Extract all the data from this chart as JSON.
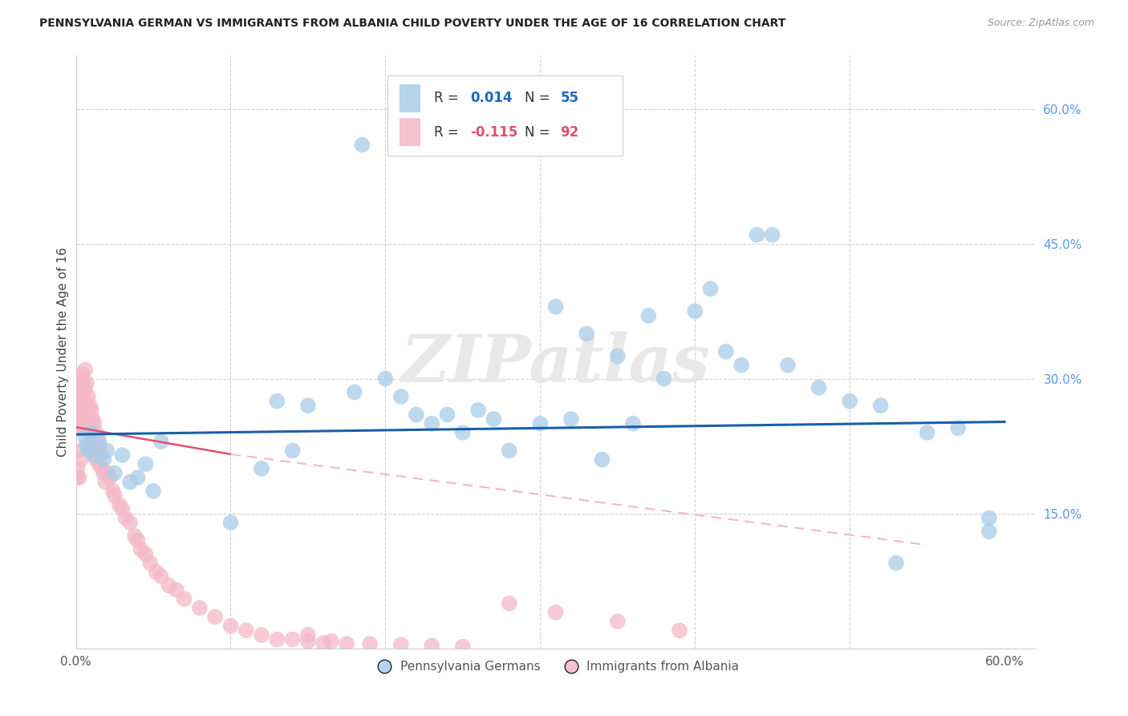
{
  "title": "PENNSYLVANIA GERMAN VS IMMIGRANTS FROM ALBANIA CHILD POVERTY UNDER THE AGE OF 16 CORRELATION CHART",
  "source": "Source: ZipAtlas.com",
  "ylabel": "Child Poverty Under the Age of 16",
  "xlim": [
    0.0,
    0.62
  ],
  "ylim": [
    0.0,
    0.66
  ],
  "blue_color": "#a8cce8",
  "pink_color": "#f4b8c8",
  "blue_line_color": "#1a5fa8",
  "pink_line_color": "#e05070",
  "pink_dashed_color": "#f0b8c8",
  "watermark": "ZIPatlas",
  "legend_label1": "Pennsylvania Germans",
  "legend_label2": "Immigrants from Albania",
  "blue_x": [
    0.006,
    0.007,
    0.008,
    0.01,
    0.012,
    0.015,
    0.018,
    0.02,
    0.025,
    0.03,
    0.035,
    0.04,
    0.045,
    0.05,
    0.055,
    0.1,
    0.12,
    0.13,
    0.14,
    0.15,
    0.18,
    0.185,
    0.2,
    0.21,
    0.22,
    0.23,
    0.24,
    0.25,
    0.26,
    0.27,
    0.28,
    0.3,
    0.31,
    0.32,
    0.33,
    0.34,
    0.35,
    0.36,
    0.37,
    0.38,
    0.4,
    0.41,
    0.42,
    0.43,
    0.44,
    0.45,
    0.46,
    0.48,
    0.5,
    0.52,
    0.53,
    0.55,
    0.57,
    0.59,
    0.59
  ],
  "blue_y": [
    0.235,
    0.225,
    0.22,
    0.24,
    0.215,
    0.23,
    0.21,
    0.22,
    0.195,
    0.215,
    0.185,
    0.19,
    0.205,
    0.175,
    0.23,
    0.14,
    0.2,
    0.275,
    0.22,
    0.27,
    0.285,
    0.56,
    0.3,
    0.28,
    0.26,
    0.25,
    0.26,
    0.24,
    0.265,
    0.255,
    0.22,
    0.25,
    0.38,
    0.255,
    0.35,
    0.21,
    0.325,
    0.25,
    0.37,
    0.3,
    0.375,
    0.4,
    0.33,
    0.315,
    0.46,
    0.46,
    0.315,
    0.29,
    0.275,
    0.27,
    0.095,
    0.24,
    0.245,
    0.145,
    0.13
  ],
  "pink_x": [
    0.001,
    0.001,
    0.001,
    0.002,
    0.002,
    0.002,
    0.002,
    0.002,
    0.002,
    0.003,
    0.003,
    0.003,
    0.003,
    0.003,
    0.004,
    0.004,
    0.004,
    0.004,
    0.004,
    0.005,
    0.005,
    0.005,
    0.005,
    0.006,
    0.006,
    0.006,
    0.007,
    0.007,
    0.007,
    0.008,
    0.008,
    0.008,
    0.009,
    0.009,
    0.01,
    0.01,
    0.01,
    0.011,
    0.011,
    0.012,
    0.012,
    0.013,
    0.013,
    0.014,
    0.015,
    0.015,
    0.016,
    0.017,
    0.018,
    0.019,
    0.02,
    0.022,
    0.024,
    0.025,
    0.028,
    0.03,
    0.032,
    0.035,
    0.038,
    0.04,
    0.042,
    0.045,
    0.048,
    0.052,
    0.055,
    0.06,
    0.065,
    0.07,
    0.08,
    0.09,
    0.1,
    0.11,
    0.12,
    0.13,
    0.14,
    0.15,
    0.16,
    0.175,
    0.19,
    0.21,
    0.23,
    0.25,
    0.28,
    0.31,
    0.35,
    0.39,
    0.005,
    0.006,
    0.007,
    0.15,
    0.165
  ],
  "pink_y": [
    0.22,
    0.2,
    0.19,
    0.285,
    0.275,
    0.265,
    0.255,
    0.245,
    0.19,
    0.3,
    0.28,
    0.265,
    0.25,
    0.21,
    0.305,
    0.295,
    0.28,
    0.265,
    0.245,
    0.295,
    0.285,
    0.265,
    0.25,
    0.31,
    0.29,
    0.265,
    0.295,
    0.275,
    0.255,
    0.28,
    0.265,
    0.24,
    0.27,
    0.25,
    0.265,
    0.245,
    0.225,
    0.255,
    0.23,
    0.25,
    0.225,
    0.24,
    0.21,
    0.235,
    0.225,
    0.205,
    0.215,
    0.2,
    0.195,
    0.185,
    0.195,
    0.19,
    0.175,
    0.17,
    0.16,
    0.155,
    0.145,
    0.14,
    0.125,
    0.12,
    0.11,
    0.105,
    0.095,
    0.085,
    0.08,
    0.07,
    0.065,
    0.055,
    0.045,
    0.035,
    0.025,
    0.02,
    0.015,
    0.01,
    0.01,
    0.008,
    0.006,
    0.005,
    0.005,
    0.004,
    0.003,
    0.002,
    0.05,
    0.04,
    0.03,
    0.02,
    0.27,
    0.26,
    0.25,
    0.015,
    0.008
  ]
}
